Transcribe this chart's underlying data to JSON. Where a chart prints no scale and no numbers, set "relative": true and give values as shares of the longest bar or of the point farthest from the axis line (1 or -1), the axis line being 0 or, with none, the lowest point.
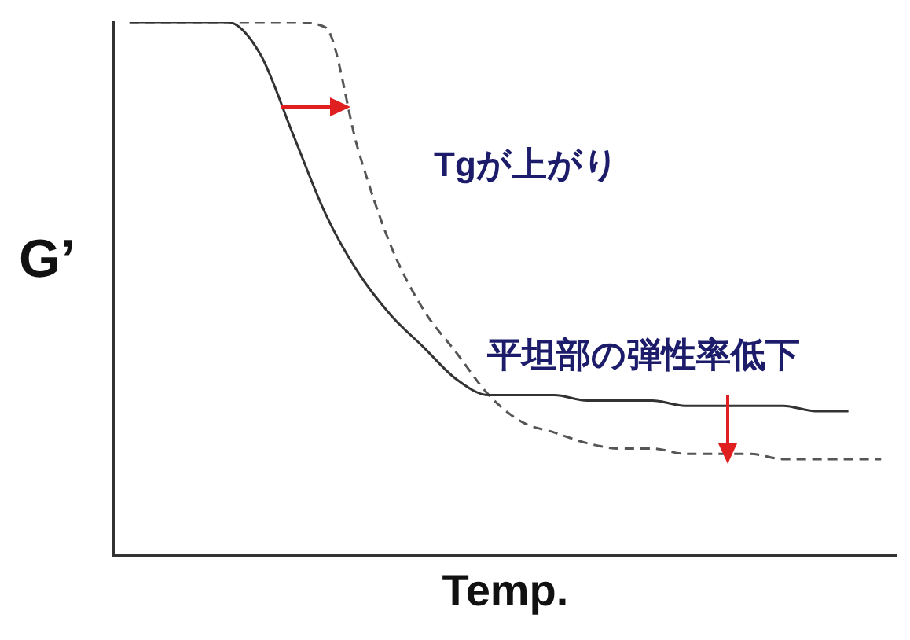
{
  "chart_data": {
    "type": "line",
    "relative": true,
    "xlabel": "Temp.",
    "ylabel": "G’",
    "annotations": [
      "Tgが上がり",
      "平坦部の弾性率低下"
    ],
    "categories": [
      null,
      null,
      null,
      null,
      null,
      null,
      null,
      null,
      null,
      null,
      null,
      null,
      null,
      null,
      null,
      null,
      null,
      null,
      null,
      null,
      null,
      null,
      null,
      null
    ],
    "series": [
      {
        "color": "#333333",
        "line_style": "solid",
        "values": [
          1,
          1,
          1,
          1,
          0.94,
          0.79,
          0.64,
          0.53,
          0.45,
          0.39,
          0.33,
          0.3,
          0.3,
          0.3,
          0.29,
          0.29,
          0.29,
          0.28,
          0.28,
          0.28,
          0.28,
          0.27,
          0.27,
          null
        ]
      },
      {
        "color": "#555555",
        "line_style": "dashed",
        "values": [
          1,
          1,
          1,
          1,
          1,
          1,
          0.99,
          0.76,
          0.58,
          0.46,
          0.38,
          0.3,
          0.25,
          0.23,
          0.21,
          0.2,
          0.2,
          0.19,
          0.19,
          0.19,
          0.18,
          0.18,
          0.18,
          0.18
        ]
      }
    ],
    "legend": false,
    "grid": false,
    "marker": "none"
  }
}
